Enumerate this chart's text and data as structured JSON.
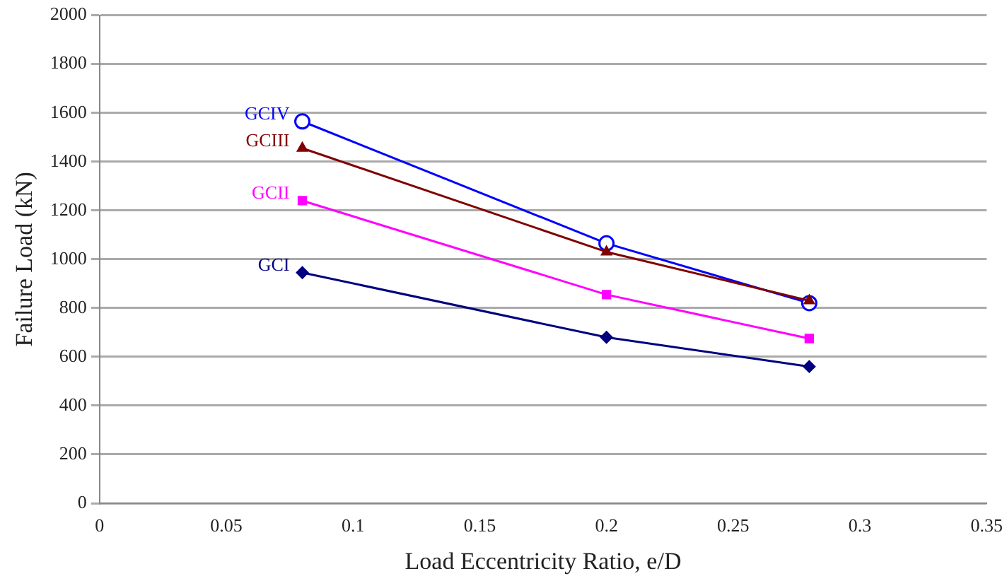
{
  "chart_data": {
    "type": "line",
    "xlabel": "Load Eccentricity Ratio, e/D",
    "ylabel": "Failure Load (kN)",
    "x": [
      0.08,
      0.2,
      0.28
    ],
    "series": [
      {
        "name": "GCI",
        "color": "#000080",
        "marker": "diamond",
        "values": [
          945,
          680,
          560
        ]
      },
      {
        "name": "GCII",
        "color": "#ff00ff",
        "marker": "square",
        "values": [
          1240,
          855,
          675
        ]
      },
      {
        "name": "GCIII",
        "color": "#800000",
        "marker": "triangle",
        "values": [
          1455,
          1030,
          830
        ]
      },
      {
        "name": "GCIV",
        "color": "#0000ff",
        "marker": "circle",
        "values": [
          1565,
          1065,
          820
        ]
      }
    ],
    "xlim": [
      0,
      0.35
    ],
    "xticks": [
      0,
      0.05,
      0.1,
      0.15,
      0.2,
      0.25,
      0.3,
      0.35
    ],
    "ylim": [
      0,
      2000
    ],
    "yticks": [
      0,
      200,
      400,
      600,
      800,
      1000,
      1200,
      1400,
      1600,
      1800,
      2000
    ],
    "grid": "y",
    "legend": false
  }
}
